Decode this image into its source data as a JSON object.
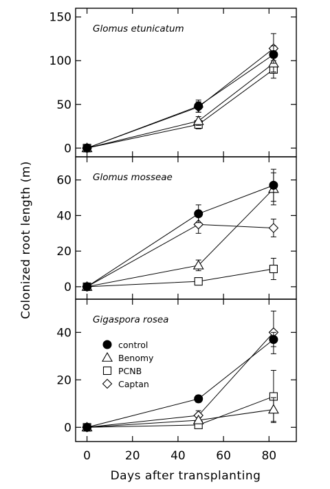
{
  "chart_data": {
    "type": "line",
    "xlabel": "Days after transplanting",
    "ylabel": "Colonized root length (m)",
    "x_ticks": [
      0,
      20,
      40,
      60,
      80
    ],
    "xlim": [
      -5,
      92
    ],
    "legend": {
      "placement": "inside-bottom-panel-left",
      "entries": [
        {
          "name": "control",
          "marker": "filled-circle"
        },
        {
          "name": "Benomy",
          "marker": "open-triangle"
        },
        {
          "name": "PCNB",
          "marker": "open-square"
        },
        {
          "name": "Captan",
          "marker": "open-diamond"
        }
      ]
    },
    "panels": [
      {
        "title": "Glomus etunicatum",
        "ylim": [
          -10,
          160
        ],
        "y_ticks": [
          0,
          50,
          100,
          150
        ],
        "x": [
          0,
          49,
          82
        ],
        "series": [
          {
            "name": "control",
            "values": [
              0,
              48,
              107
            ],
            "errors": [
              3,
              7,
              10
            ]
          },
          {
            "name": "Benomy",
            "values": [
              0,
              31,
              97
            ],
            "errors": [
              3,
              5,
              10
            ]
          },
          {
            "name": "PCNB",
            "values": [
              0,
              27,
              90
            ],
            "errors": [
              3,
              5,
              10
            ]
          },
          {
            "name": "Captan",
            "values": [
              0,
              47,
              114
            ],
            "errors": [
              3,
              6,
              17
            ]
          }
        ]
      },
      {
        "title": "Glomus mosseae",
        "ylim": [
          -7,
          73
        ],
        "y_ticks": [
          0,
          20,
          40,
          60
        ],
        "x": [
          0,
          49,
          82
        ],
        "series": [
          {
            "name": "control",
            "values": [
              0,
              41,
              57
            ],
            "errors": [
              1,
              5,
              9
            ]
          },
          {
            "name": "Benomy",
            "values": [
              0,
              12,
              55
            ],
            "errors": [
              1,
              3,
              9
            ]
          },
          {
            "name": "PCNB",
            "values": [
              0,
              3,
              10
            ],
            "errors": [
              1,
              1.5,
              6
            ]
          },
          {
            "name": "Captan",
            "values": [
              0,
              35,
              33
            ],
            "errors": [
              1,
              5,
              5
            ]
          }
        ]
      },
      {
        "title": "Gigaspora rosea",
        "ylim": [
          -6,
          54
        ],
        "y_ticks": [
          0,
          20,
          40
        ],
        "x": [
          0,
          49,
          82
        ],
        "series": [
          {
            "name": "control",
            "values": [
              0,
              12,
              37
            ],
            "errors": [
              0.5,
              1.5,
              3
            ]
          },
          {
            "name": "Benomy",
            "values": [
              0,
              3,
              7.5
            ],
            "errors": [
              0.5,
              1,
              5
            ]
          },
          {
            "name": "PCNB",
            "values": [
              0,
              1,
              13
            ],
            "errors": [
              0.5,
              1,
              11
            ]
          },
          {
            "name": "Captan",
            "values": [
              0,
              5,
              40
            ],
            "errors": [
              0.5,
              2,
              9
            ]
          }
        ]
      }
    ]
  }
}
